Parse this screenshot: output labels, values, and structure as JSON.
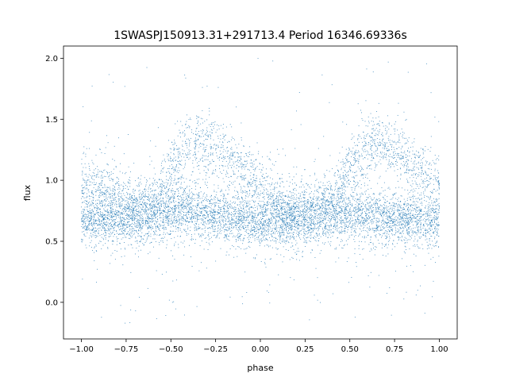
{
  "chart_data": {
    "type": "scatter",
    "title": "1SWASPJ150913.31+291713.4 Period 16346.69336s",
    "xlabel": "phase",
    "ylabel": "flux",
    "xlim": [
      -1.1,
      1.1
    ],
    "ylim": [
      -0.3,
      2.1
    ],
    "xticks": [
      -1.0,
      -0.75,
      -0.5,
      -0.25,
      0.0,
      0.25,
      0.5,
      0.75,
      1.0
    ],
    "xtick_labels": [
      "−1.00",
      "−0.75",
      "−0.50",
      "−0.25",
      "0.00",
      "0.25",
      "0.50",
      "0.75",
      "1.00"
    ],
    "yticks": [
      0.0,
      0.5,
      1.0,
      1.5,
      2.0
    ],
    "ytick_labels": [
      "0.0",
      "0.5",
      "1.0",
      "1.5",
      "2.0"
    ],
    "grid": false,
    "legend": "none",
    "point_color": "#1f77b4",
    "series": [
      {
        "note_structure": "phase-folded light curve: dense baseline band plus two brightening humps",
        "x": [
          -1.0,
          -0.9,
          -0.8,
          -0.7,
          -0.6,
          -0.5,
          -0.4,
          -0.3,
          -0.2,
          -0.1,
          0.0,
          0.1,
          0.2,
          0.3,
          0.4,
          0.5,
          0.6,
          0.7,
          0.8,
          0.9,
          1.0
        ],
        "baseline_flux": [
          0.68,
          0.68,
          0.68,
          0.7,
          0.72,
          0.74,
          0.74,
          0.72,
          0.7,
          0.68,
          0.66,
          0.66,
          0.68,
          0.7,
          0.72,
          0.72,
          0.72,
          0.7,
          0.7,
          0.68,
          0.68
        ],
        "upper_branch_flux": [
          0.98,
          0.95,
          0.85,
          0.76,
          0.8,
          1.1,
          1.28,
          1.3,
          1.22,
          1.08,
          0.92,
          0.8,
          0.74,
          0.76,
          0.86,
          1.1,
          1.28,
          1.3,
          1.2,
          1.05,
          0.98
        ]
      }
    ]
  }
}
